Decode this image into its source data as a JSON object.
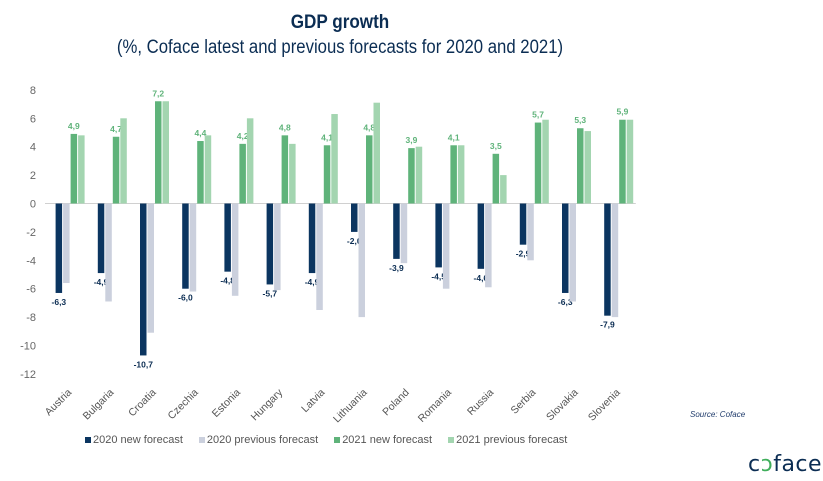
{
  "chart_data": {
    "type": "bar",
    "title": "GDP growth",
    "subtitle": "(%, Coface latest and previous forecasts for 2020 and 2021)",
    "xlabel": "",
    "ylabel": "",
    "ylim": [
      -12,
      8
    ],
    "yticks": [
      8,
      6,
      4,
      2,
      0,
      -2,
      -4,
      -6,
      -8,
      -10,
      -12
    ],
    "categories": [
      "Austria",
      "Bulgaria",
      "Croatia",
      "Czechia",
      "Estonia",
      "Hungary",
      "Latvia",
      "Lithuania",
      "Poland",
      "Romania",
      "Russia",
      "Serbia",
      "Slovakia",
      "Slovenia"
    ],
    "series": [
      {
        "name": "2020 new forecast",
        "color": "#0b3560",
        "labelled": true,
        "label_color": "#0b2d53",
        "values": [
          -6.3,
          -4.9,
          -10.7,
          -6.0,
          -4.8,
          -5.7,
          -4.9,
          -2.0,
          -3.9,
          -4.5,
          -4.6,
          -2.9,
          -6.3,
          -7.9
        ],
        "labels": [
          "-6,3",
          "-4,9",
          "-10,7",
          "-6,0",
          "-4,8",
          "-5,7",
          "-4,9",
          "-2,0",
          "-3,9",
          "-4,5",
          "-4,6",
          "-2,9",
          "-6,3",
          "-7,9"
        ]
      },
      {
        "name": "2020 previous forecast",
        "color": "#cbd0dd",
        "labelled": false,
        "values": [
          -5.6,
          -6.9,
          -9.1,
          -6.2,
          -6.5,
          -6.1,
          -7.5,
          -8.0,
          -4.2,
          -6.0,
          -5.9,
          -4.0,
          -6.9,
          -8.0
        ]
      },
      {
        "name": "2021 new forecast",
        "color": "#5fb37a",
        "labelled": true,
        "label_color": "#5fb37a",
        "values": [
          4.9,
          4.7,
          7.2,
          4.4,
          4.2,
          4.8,
          4.1,
          4.8,
          3.9,
          4.1,
          3.5,
          5.7,
          5.3,
          5.9
        ],
        "labels": [
          "4,9",
          "4,7",
          "7,2",
          "4,4",
          "4,2",
          "4,8",
          "4,1",
          "4,8",
          "3,9",
          "4,1",
          "3,5",
          "5,7",
          "5,3",
          "5,9"
        ]
      },
      {
        "name": "2021 previous forecast",
        "color": "#a3d5b0",
        "labelled": false,
        "values": [
          4.8,
          6.0,
          7.2,
          4.8,
          6.0,
          4.2,
          6.3,
          7.1,
          4.0,
          4.1,
          2.0,
          5.9,
          5.1,
          5.9
        ]
      }
    ],
    "legend": "bottom",
    "grid": false
  },
  "source": "Source: Coface",
  "logo": {
    "pre": "c",
    "mid": "ɔ",
    "post": "face"
  }
}
